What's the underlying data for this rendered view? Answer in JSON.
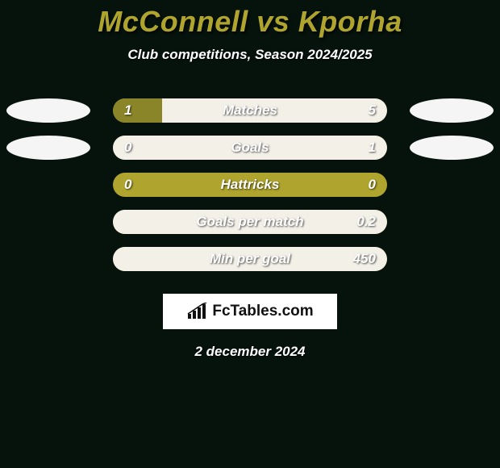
{
  "title": {
    "text": "McConnell vs Kporha",
    "color": "#afa52e",
    "fontsize": 36
  },
  "subtitle": {
    "text": "Club competitions, Season 2024/2025",
    "fontsize": 17
  },
  "layout": {
    "track_width": 340,
    "track_height": 30,
    "track_bg": "#afa52e",
    "left_fill_color": "#8b8529",
    "right_fill_color": "#f3f0e8",
    "ellipse_color": "#f5f5f5",
    "background_color": "#06130d"
  },
  "rows": [
    {
      "label": "Matches",
      "left_val": "1",
      "right_val": "5",
      "left_pct": 18,
      "right_pct": 82,
      "show_ellipses": true
    },
    {
      "label": "Goals",
      "left_val": "0",
      "right_val": "1",
      "left_pct": 0,
      "right_pct": 100,
      "show_ellipses": true
    },
    {
      "label": "Hattricks",
      "left_val": "0",
      "right_val": "0",
      "left_pct": 0,
      "right_pct": 0,
      "show_ellipses": false
    },
    {
      "label": "Goals per match",
      "left_val": "",
      "right_val": "0.2",
      "left_pct": 0,
      "right_pct": 100,
      "show_ellipses": false
    },
    {
      "label": "Min per goal",
      "left_val": "",
      "right_val": "450",
      "left_pct": 0,
      "right_pct": 100,
      "show_ellipses": false
    }
  ],
  "logo": {
    "text": "FcTables.com",
    "icon_color": "#111111"
  },
  "date_text": "2 december 2024"
}
